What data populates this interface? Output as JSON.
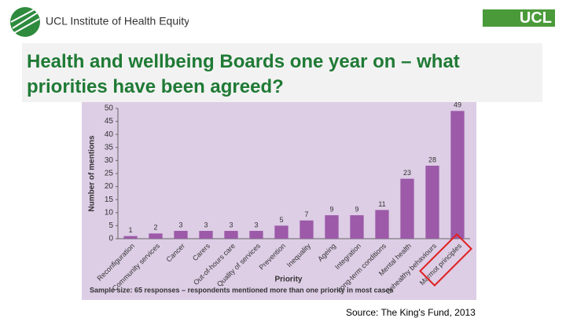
{
  "header": {
    "logo_text": "UCL Institute of Health Equity",
    "right_logo": "UCL"
  },
  "title": "Health and wellbeing Boards one year on – what priorities have been agreed?",
  "source": "Source: The King's Fund, 2013",
  "chart_data": {
    "type": "bar",
    "categories": [
      "Reconfiguration",
      "Community services",
      "Cancer",
      "Carers",
      "Out-of-hours care",
      "Quality of services",
      "Prevention",
      "Inequality",
      "Ageing",
      "Integration",
      "Long-term conditions",
      "Mental health",
      "Unhealthy behaviours",
      "Marmot principles"
    ],
    "values": [
      1,
      2,
      3,
      3,
      3,
      3,
      5,
      7,
      9,
      9,
      11,
      23,
      28,
      49
    ],
    "color": "#9c5aa8",
    "ylim": [
      0,
      50
    ],
    "yticks": [
      0,
      5,
      10,
      15,
      20,
      25,
      30,
      35,
      40,
      45,
      50
    ],
    "y_label": "Number of mentions",
    "x_label": "Priority",
    "note": "Sample size: 65 responses – respondents mentioned more than one priority in most cases"
  }
}
